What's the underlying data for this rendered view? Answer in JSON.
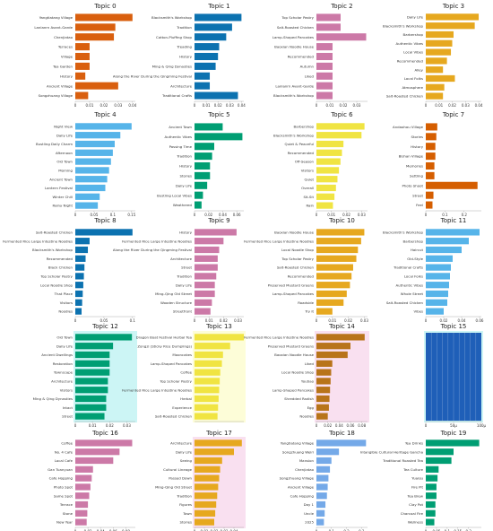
{
  "chart_data": [
    {
      "type": "bar",
      "title": "Topic 0",
      "color": "#d95f0e",
      "shade": "",
      "categories": [
        "Yangtiatang Village",
        "Lanlanrn Avant-Garde",
        "Chenjiatao",
        "Terraces",
        "Village",
        "Tea Garden",
        "History",
        "Ancient Village",
        "Songzhuang Village"
      ],
      "values": [
        0.04,
        0.028,
        0.027,
        0.01,
        0.01,
        0.01,
        0.007,
        0.03,
        0.009
      ],
      "ticks": [
        "0",
        "0.01",
        "0.02",
        "0.03",
        "0.04"
      ],
      "xlim": [
        0,
        0.042
      ]
    },
    {
      "type": "bar",
      "title": "Topic 1",
      "color": "#0c72b0",
      "shade": "",
      "categories": [
        "Blacksmith's Workshop",
        "Tradition",
        "Cotton-Pluffing Shop",
        "Treading",
        "History",
        "Ming & Qing Dynasties",
        "Along the River During the Qingming Festival",
        "Architecture",
        "Traditional Crafts"
      ],
      "values": [
        0.04,
        0.032,
        0.027,
        0.021,
        0.02,
        0.018,
        0.013,
        0.013,
        0.037
      ],
      "ticks": [
        "0",
        "0.01",
        "0.02",
        "0.03",
        "0.04"
      ],
      "xlim": [
        0,
        0.042
      ]
    },
    {
      "type": "bar",
      "title": "Topic 2",
      "color": "#cc79a7",
      "shade": "",
      "categories": [
        "Top Scholar Pastry",
        "Salt-Roasted Chicken",
        "Lamp-Shaped Pancakes",
        "Baoxian Noodle House",
        "Recommended",
        "Autumn",
        "Liked",
        "Lanlanrn Avant-Garde",
        "Blacksmith's Workshop"
      ],
      "values": [
        0.018,
        0.018,
        0.037,
        0.012,
        0.012,
        0.012,
        0.012,
        0.012,
        0.012
      ],
      "ticks": [
        "0",
        "0.01",
        "0.02",
        "0.03"
      ],
      "xlim": [
        0,
        0.038
      ]
    },
    {
      "type": "bar",
      "title": "Topic 3",
      "color": "#e6a81f",
      "shade": "",
      "categories": [
        "Daily Life",
        "Blacksmith's Workshop",
        "Barbershop",
        "Authentic Vibes",
        "Local Vibes",
        "Recommended",
        "Alley",
        "Local Folks",
        "Atmosphere",
        "Salt-Roasted Chicken"
      ],
      "values": [
        0.04,
        0.037,
        0.021,
        0.02,
        0.019,
        0.016,
        0.013,
        0.022,
        0.014,
        0.013
      ],
      "ticks": [
        "0",
        "0.01",
        "0.02",
        "0.03",
        "0.04"
      ],
      "xlim": [
        0,
        0.042
      ]
    },
    {
      "type": "bar",
      "title": "Topic 4",
      "color": "#56b4e9",
      "shade": "",
      "categories": [
        "Night View",
        "Daily Life",
        "Bustling Daily Charm",
        "Afternoon",
        "Old Town",
        "Morning",
        "Ancient Town",
        "Lantern Festival",
        "Winter Chill",
        "Rainy Night"
      ],
      "values": [
        0.15,
        0.12,
        0.105,
        0.1,
        0.095,
        0.09,
        0.085,
        0.08,
        0.065,
        0.06
      ],
      "ticks": [
        "0",
        "0.05",
        "0.1",
        "0.15"
      ],
      "xlim": [
        0,
        0.16
      ]
    },
    {
      "type": "bar",
      "title": "Topic 5",
      "color": "#009e73",
      "shade": "",
      "categories": [
        "Ancient Town",
        "Authentic Vibes",
        "Passing Time",
        "Tradition",
        "History",
        "Stories",
        "Daily Life",
        "Bustling Local Vibes",
        "Weathered"
      ],
      "values": [
        0.04,
        0.068,
        0.028,
        0.025,
        0.022,
        0.022,
        0.018,
        0.012,
        0.01
      ],
      "ticks": [
        "0",
        "0.02",
        "0.04",
        "0.06"
      ],
      "xlim": [
        0,
        0.07
      ]
    },
    {
      "type": "bar",
      "title": "Topic 6",
      "color": "#f0e442",
      "shade": "",
      "categories": [
        "Barbershop",
        "Blacksmith's Workshop",
        "Quiet & Peaceful",
        "Recommended",
        "Off-Season",
        "Visitors",
        "Quiet",
        "Overall",
        "Sit-Sit",
        "Rain"
      ],
      "values": [
        0.032,
        0.03,
        0.018,
        0.017,
        0.016,
        0.015,
        0.014,
        0.013,
        0.012,
        0.011
      ],
      "ticks": [
        "0",
        "0.01",
        "0.02",
        "0.03"
      ],
      "xlim": [
        0,
        0.034
      ]
    },
    {
      "type": "bar",
      "title": "Topic 7",
      "color": "#d55e00",
      "shade": "",
      "categories": [
        "Andaohou Village",
        "Stories",
        "History",
        "Bishan Village",
        "Memories",
        "Settling",
        "Photo Shoot",
        "Street",
        "Feel"
      ],
      "values": [
        0.06,
        0.055,
        0.05,
        0.05,
        0.045,
        0.045,
        0.27,
        0.04,
        0.035
      ],
      "ticks": [
        "0",
        "0.1",
        "0.2"
      ],
      "xlim": [
        0,
        0.29
      ]
    },
    {
      "type": "bar",
      "title": "Topic 8",
      "color": "#0c72b0",
      "shade": "",
      "categories": [
        "Salt-Roasted Chicken",
        "Fermented Rice Large Intestine Noodles",
        "Blacksmith's Workshop",
        "Recommended",
        "Black Chicken",
        "Top Scholar Pastry",
        "Local Noodle Shop",
        "That Place",
        "Visitors",
        "Noodles"
      ],
      "values": [
        0.1,
        0.025,
        0.022,
        0.018,
        0.016,
        0.015,
        0.014,
        0.013,
        0.012,
        0.011
      ],
      "ticks": [
        "0",
        "0.05",
        "0.1"
      ],
      "xlim": [
        0,
        0.105
      ]
    },
    {
      "type": "bar",
      "title": "Topic 9",
      "color": "#cc79a7",
      "shade": "",
      "categories": [
        "History",
        "Fermented Rice Large Intestine Noodles",
        "Along the River During the Qingming Festival",
        "Architecture",
        "Street",
        "Tradition",
        "Daily Life",
        "Ming-Qing Old Street",
        "Wooden Structure",
        "Streetfront"
      ],
      "values": [
        0.029,
        0.02,
        0.017,
        0.016,
        0.016,
        0.015,
        0.014,
        0.014,
        0.012,
        0.011
      ],
      "ticks": [
        "0",
        "0.01",
        "0.02",
        "0.03"
      ],
      "xlim": [
        0,
        0.034
      ]
    },
    {
      "type": "bar",
      "title": "Topic 10",
      "color": "#e6a81f",
      "shade": "",
      "categories": [
        "Baoxian Noodle House",
        "Fermented Rice Large Intestine Noodles",
        "Local Noodle Shop",
        "Top Scholar Pastry",
        "Salt-Roasted Chicken",
        "Recommended",
        "Preserved Mustard Greens",
        "Lamp-Shaped Pancakes",
        "Roadside",
        "Try It"
      ],
      "values": [
        0.03,
        0.028,
        0.026,
        0.025,
        0.023,
        0.022,
        0.021,
        0.019,
        0.017,
        0.01
      ],
      "ticks": [
        "0",
        "0.01",
        "0.02",
        "0.03"
      ],
      "xlim": [
        0,
        0.032
      ]
    },
    {
      "type": "bar",
      "title": "Topic 11",
      "color": "#56b4e9",
      "shade": "",
      "categories": [
        "Blacksmith's Workshop",
        "Barbershop",
        "Haircut",
        "Old-Style",
        "Traditional Crafts",
        "Local Folks",
        "Authentic Vibes",
        "Whole Street",
        "Salt-Roasted Chicken",
        "Vibes"
      ],
      "values": [
        0.06,
        0.048,
        0.04,
        0.03,
        0.028,
        0.027,
        0.026,
        0.025,
        0.024,
        0.02
      ],
      "ticks": [
        "0",
        "0.02",
        "0.04",
        "0.06"
      ],
      "xlim": [
        0,
        0.062
      ]
    },
    {
      "type": "bar",
      "title": "Topic 12",
      "color": "#009e73",
      "shade": "#ccf5f5",
      "categories": [
        "Old Town",
        "Daily Life",
        "Ancient Dwellings",
        "Restoration",
        "Townscape",
        "Architecture",
        "Visitors",
        "Ming & Qing Dynasties",
        "Intact",
        "Street"
      ],
      "values": [
        0.033,
        0.022,
        0.02,
        0.02,
        0.02,
        0.019,
        0.019,
        0.018,
        0.018,
        0.017
      ],
      "ticks": [
        "0",
        "0.01",
        "0.02",
        "0.03"
      ],
      "xlim": [
        0,
        0.035
      ]
    },
    {
      "type": "bar",
      "title": "Topic 13",
      "color": "#f0e442",
      "shade": "#fdfdd8",
      "categories": [
        "Dragon Boat Festival Herbal Tea",
        "Zongzi (Sticky Rice Dumplings)",
        "Mooncakes",
        "Lamp-Shaped Pancakes",
        "Coffee",
        "Top Scholar Pastry",
        "Fermented Rice Large Intestine Noodles",
        "Herbal",
        "Experience",
        "Salt-Roasted Chicken"
      ],
      "values": [
        0.09,
        0.065,
        0.052,
        0.05,
        0.047,
        0.046,
        0.045,
        0.044,
        0.043,
        0.042
      ],
      "ticks": [],
      "xlim": [
        0,
        0.09
      ]
    },
    {
      "type": "bar",
      "title": "Topic 14",
      "color": "#b8741a",
      "shade": "#f9e0f0",
      "categories": [
        "Fermented Rice Large Intestine Noodles",
        "Preserved Mustard Greens",
        "Baoxian Noodle House",
        "Liked",
        "Local Noodle Shop",
        "Youtiao",
        "Lamp-Shaped Pancakes",
        "Shredded Radish",
        "Egg",
        "Noodles"
      ],
      "values": [
        0.085,
        0.06,
        0.055,
        0.028,
        0.026,
        0.025,
        0.024,
        0.023,
        0.022,
        0.02
      ],
      "ticks": [
        "0",
        "0.02",
        "0.04",
        "0.06",
        "0.08"
      ],
      "xlim": [
        0,
        0.09
      ]
    },
    {
      "type": "bar",
      "title": "Topic 15",
      "color": "#1f5fb8",
      "shade": "#ccf5f5",
      "categories": [
        "",
        "",
        "",
        "",
        "",
        "",
        "",
        "",
        "",
        ""
      ],
      "values": [
        100,
        100,
        100,
        100,
        100,
        100,
        100,
        100,
        100,
        100
      ],
      "ticks": [
        "0",
        "50μ",
        "100μ"
      ],
      "xlim": [
        0,
        100
      ]
    },
    {
      "type": "bar",
      "title": "Topic 16",
      "color": "#cc79a7",
      "shade": "",
      "categories": [
        "Coffee",
        "No. 4 Cafe",
        "Local Cafe",
        "Gan Tuanyuan",
        "Cafe Hopping",
        "Photo Spot",
        "Same Spot",
        "Terrace",
        "Stone",
        "New Year"
      ],
      "values": [
        0.09,
        0.07,
        0.06,
        0.028,
        0.026,
        0.024,
        0.022,
        0.02,
        0.019,
        0.018
      ],
      "ticks": [
        "0",
        "0.02",
        "0.04",
        "0.06",
        "0.08"
      ],
      "xlim": [
        0,
        0.095
      ]
    },
    {
      "type": "bar",
      "title": "Topic 17",
      "color": "#e6a81f",
      "shade": "#f9e0f0",
      "categories": [
        "Architecture",
        "Daily Life",
        "Seeing",
        "Cultural Lineage",
        "Passed Down",
        "Ming-Qing Old Street",
        "Tradition",
        "Figures",
        "Town",
        "Stories"
      ],
      "values": [
        0.048,
        0.04,
        0.028,
        0.026,
        0.025,
        0.024,
        0.023,
        0.022,
        0.021,
        0.02
      ],
      "ticks": [
        "0",
        "0.01",
        "0.02",
        "0.03",
        "0.04"
      ],
      "xlim": [
        0,
        0.05
      ]
    },
    {
      "type": "bar",
      "title": "Topic 18",
      "color": "#74a9e8",
      "shade": "",
      "categories": [
        "Yangtiatang Village",
        "Songzhuang Weiri",
        "Mansion",
        "Chenjiatao",
        "Songzhuang Village",
        "Ancient Village",
        "Cafe Hopping",
        "Day 1",
        "Uncle",
        "2025"
      ],
      "values": [
        0.33,
        0.15,
        0.1,
        0.09,
        0.08,
        0.075,
        0.07,
        0.06,
        0.055,
        0.05
      ],
      "ticks": [
        "0",
        "0.1",
        "0.2",
        "0.3"
      ],
      "xlim": [
        0,
        0.34
      ]
    },
    {
      "type": "bar",
      "title": "Topic 19",
      "color": "#009e73",
      "shade": "",
      "categories": [
        "Tea Drinks",
        "Intangible Cultural Heritage Gancha",
        "Traditional Roasted Tea",
        "Tea Culture",
        "Yuanju",
        "Fire Pit",
        "Tea Brew",
        "Clay Pot",
        "Charcoal Fire",
        "Wellness"
      ],
      "values": [
        0.25,
        0.13,
        0.12,
        0.06,
        0.055,
        0.05,
        0.05,
        0.045,
        0.045,
        0.04
      ],
      "ticks": [
        "0",
        "0.05",
        "0.1",
        "0.15",
        "0.2"
      ],
      "xlim": [
        0,
        0.26
      ]
    }
  ]
}
